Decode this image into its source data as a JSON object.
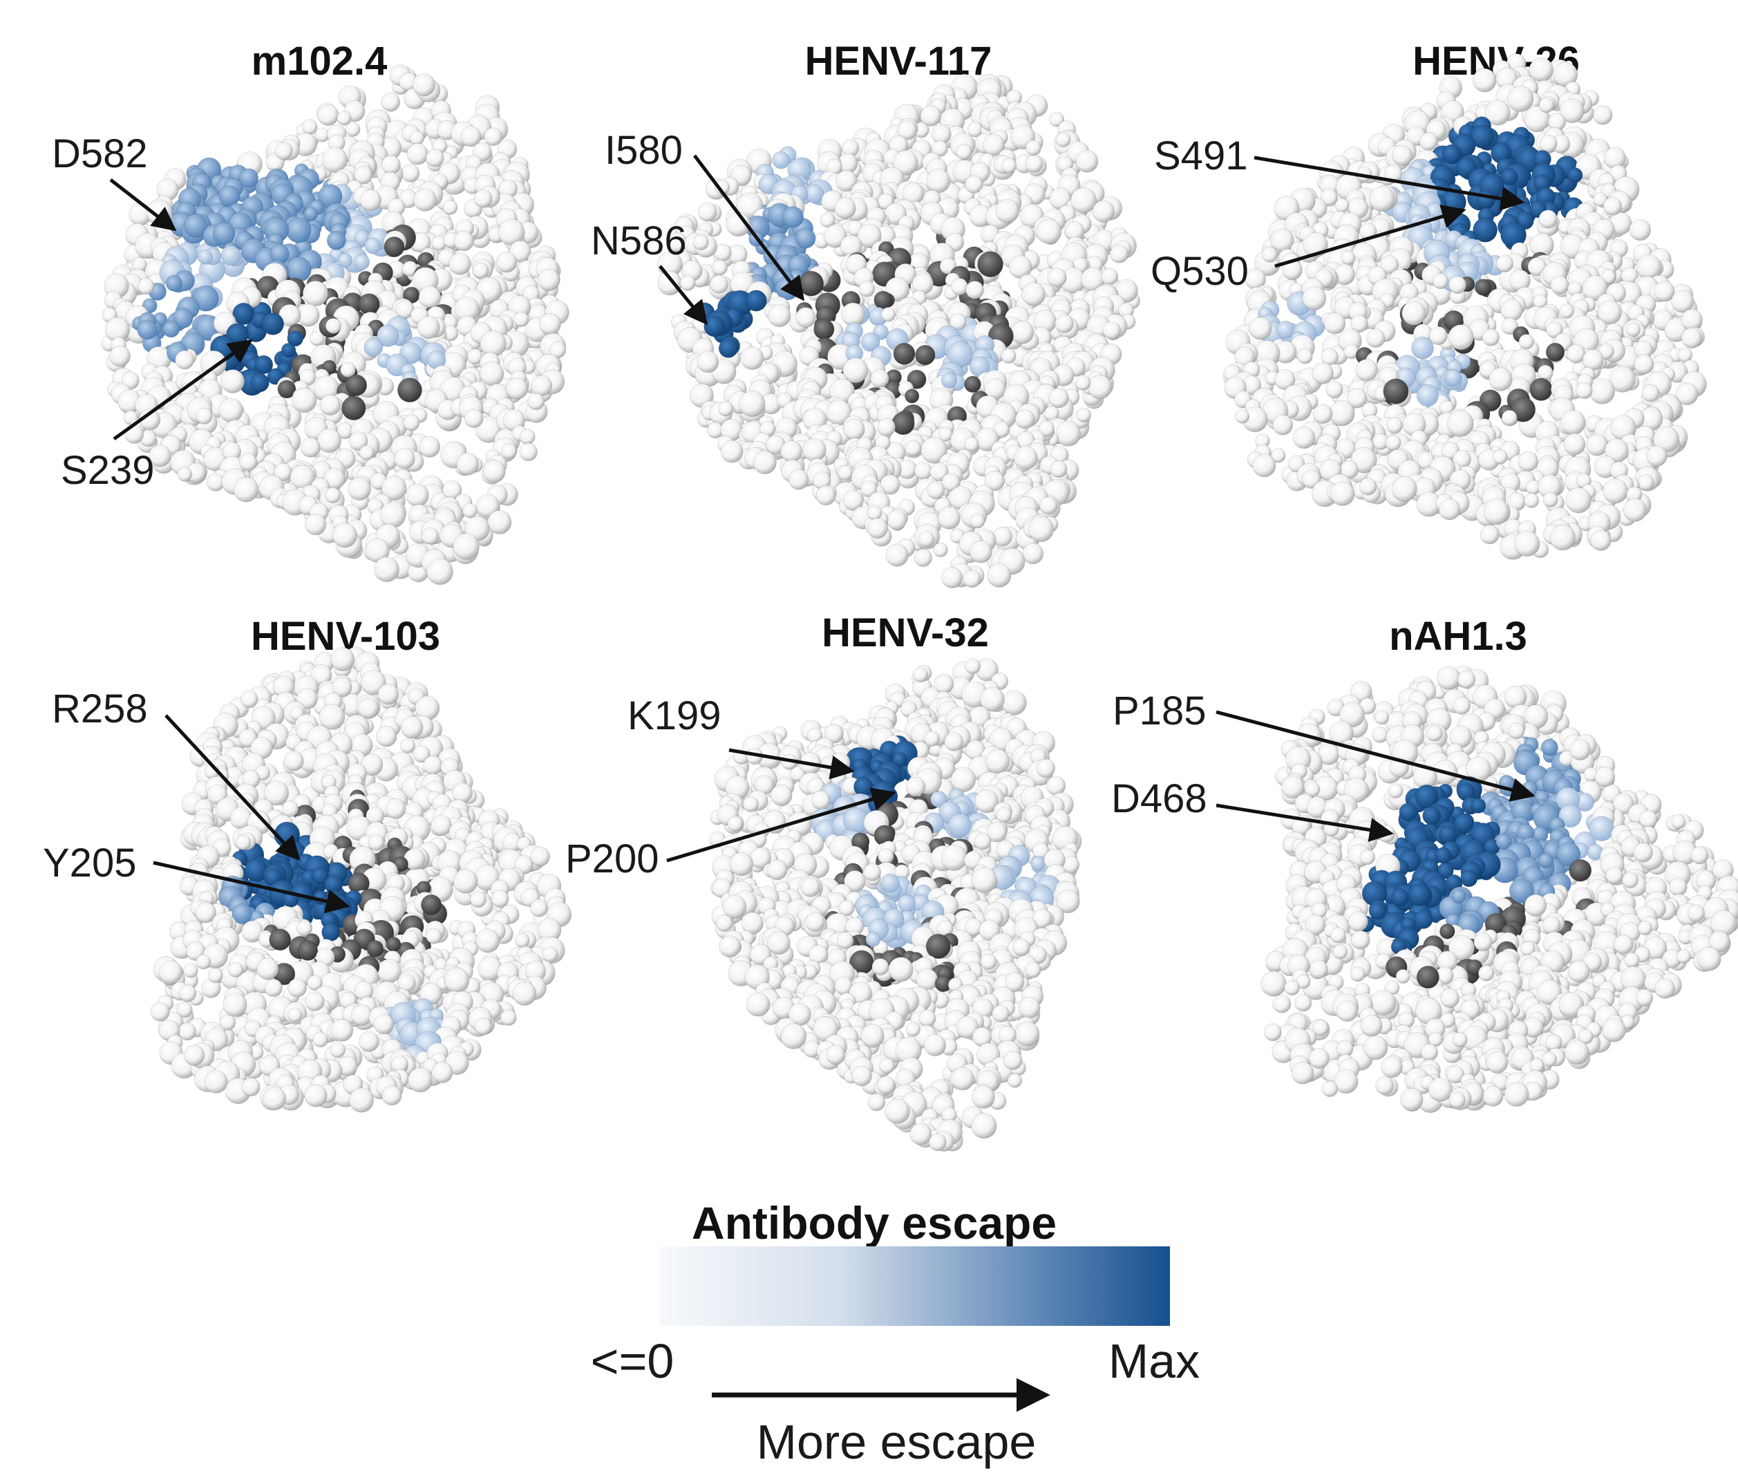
{
  "panels": [
    {
      "title": "m102.4",
      "labels": [
        "D582",
        "S239"
      ]
    },
    {
      "title": "HENV-117",
      "labels": [
        "I580",
        "N586"
      ]
    },
    {
      "title": "HENV-26",
      "labels": [
        "S491",
        "Q530"
      ]
    },
    {
      "title": "HENV-103",
      "labels": [
        "R258",
        "Y205"
      ]
    },
    {
      "title": "HENV-32",
      "labels": [
        "K199",
        "P200"
      ]
    },
    {
      "title": "nAH1.3",
      "labels": [
        "P185",
        "D468"
      ]
    }
  ],
  "legend": {
    "title": "Antibody escape",
    "min_label": "<=0",
    "max_label": "Max",
    "direction_label": "More escape",
    "color_min": "#f7f9fc",
    "color_max": "#15508f"
  },
  "colors": {
    "atom_white": "#ffffff",
    "atom_gray": "#555555",
    "escape_light": "#c8daf0",
    "escape_mid": "#7fa6d2",
    "escape_dark": "#1f5c9c"
  }
}
